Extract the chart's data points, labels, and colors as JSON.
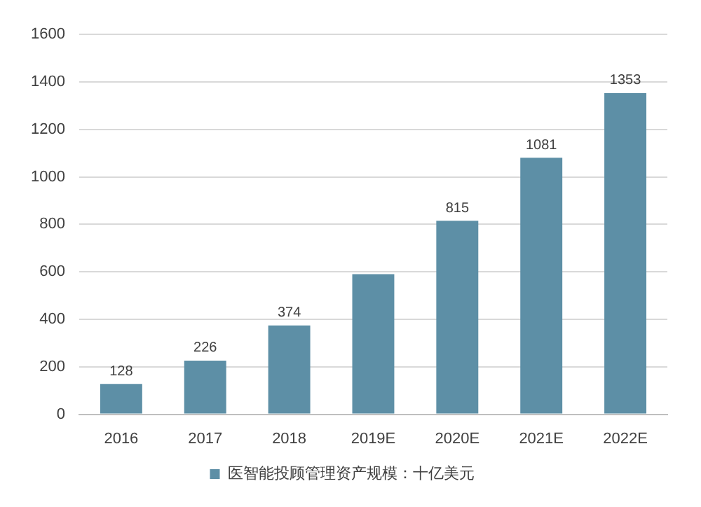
{
  "chart_data": {
    "type": "bar",
    "categories": [
      "2016",
      "2017",
      "2018",
      "2019E",
      "2020E",
      "2021E",
      "2022E"
    ],
    "series": [
      {
        "name": "医智能投顾管理资产规模：十亿美元",
        "color": "#5d8fa6",
        "values": [
          128,
          226,
          374,
          590,
          815,
          1081,
          1353
        ],
        "value_labels": [
          "128",
          "226",
          "374",
          null,
          "815",
          "1081",
          "1353"
        ]
      }
    ],
    "ylim": [
      0,
      1600
    ],
    "yticks": [
      0,
      200,
      400,
      600,
      800,
      1000,
      1200,
      1400,
      1600
    ],
    "grid": "y",
    "legend": "bottom"
  }
}
